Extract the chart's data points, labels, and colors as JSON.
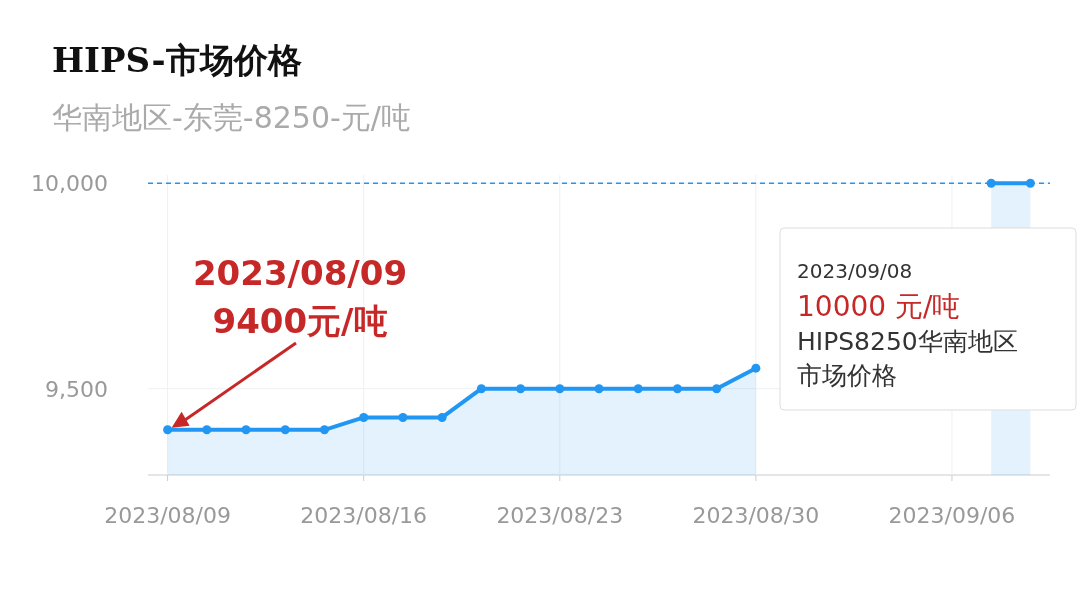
{
  "chart_data": {
    "type": "area",
    "title": "HIPS-市场价格",
    "subtitle": "华南地区-东莞-8250-元/吨",
    "categories": [
      "2023/08/09",
      null,
      null,
      null,
      null,
      "2023/08/16",
      null,
      null,
      null,
      null,
      "2023/08/23",
      null,
      null,
      null,
      null,
      "2023/08/30",
      null,
      null,
      null,
      null,
      "2023/09/06",
      null,
      null
    ],
    "values": [
      9400,
      9400,
      9400,
      9400,
      9400,
      9430,
      9430,
      9430,
      9500,
      9500,
      9500,
      9500,
      9500,
      9500,
      9500,
      9550,
      null,
      null,
      null,
      null,
      null,
      10000,
      10000
    ],
    "color": "#2196f3",
    "ylim": [
      9290,
      10020
    ],
    "yticks": [
      {
        "value": 9500,
        "label": "9,500"
      },
      {
        "value": 10000,
        "label": "10,000"
      }
    ],
    "grid": true,
    "marker": "circle",
    "ref_lines": [
      {
        "axis": "y",
        "value": 10000,
        "line_style": "dashed",
        "color": "#2196f3"
      }
    ],
    "annotations": [
      "2023/08/09",
      {
        "text": "9400元/吨",
        "x": "2023/08/09",
        "y": 9400
      },
      "2023/09/08",
      "10000 元/吨",
      "HIPS8250华南地区市场价格"
    ]
  }
}
